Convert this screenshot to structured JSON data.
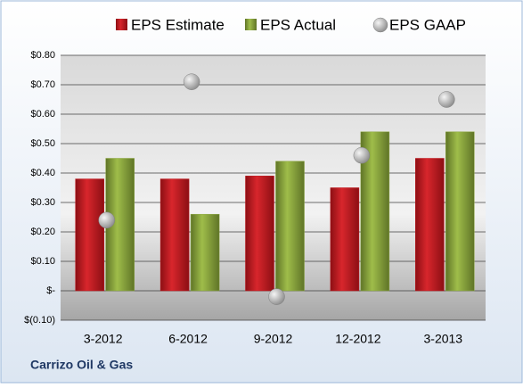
{
  "chart_data": {
    "type": "bar",
    "footer": "Carrizo Oil & Gas",
    "categories": [
      "3-2012",
      "6-2012",
      "9-2012",
      "12-2012",
      "3-2013"
    ],
    "series": [
      {
        "name": "EPS Estimate",
        "type": "bar",
        "color": "#c0151b",
        "values": [
          0.38,
          0.38,
          0.39,
          0.35,
          0.45
        ]
      },
      {
        "name": "EPS Actual",
        "type": "bar",
        "color": "#8aa63c",
        "values": [
          0.45,
          0.26,
          0.44,
          0.54,
          0.54
        ]
      },
      {
        "name": "EPS GAAP",
        "type": "scatter",
        "color": "#a6a6a6",
        "values": [
          0.24,
          0.71,
          -0.02,
          0.46,
          0.65
        ]
      }
    ],
    "ylim": [
      -0.1,
      0.8
    ],
    "yticks": [
      {
        "value": -0.1,
        "label": "$(0.10)"
      },
      {
        "value": 0,
        "label": "$-"
      },
      {
        "value": 0.1,
        "label": "$0.10"
      },
      {
        "value": 0.2,
        "label": "$0.20"
      },
      {
        "value": 0.3,
        "label": "$0.30"
      },
      {
        "value": 0.4,
        "label": "$0.40"
      },
      {
        "value": 0.5,
        "label": "$0.50"
      },
      {
        "value": 0.6,
        "label": "$0.60"
      },
      {
        "value": 0.7,
        "label": "$0.70"
      },
      {
        "value": 0.8,
        "label": "$0.80"
      }
    ],
    "grid": true,
    "legend": "top"
  }
}
